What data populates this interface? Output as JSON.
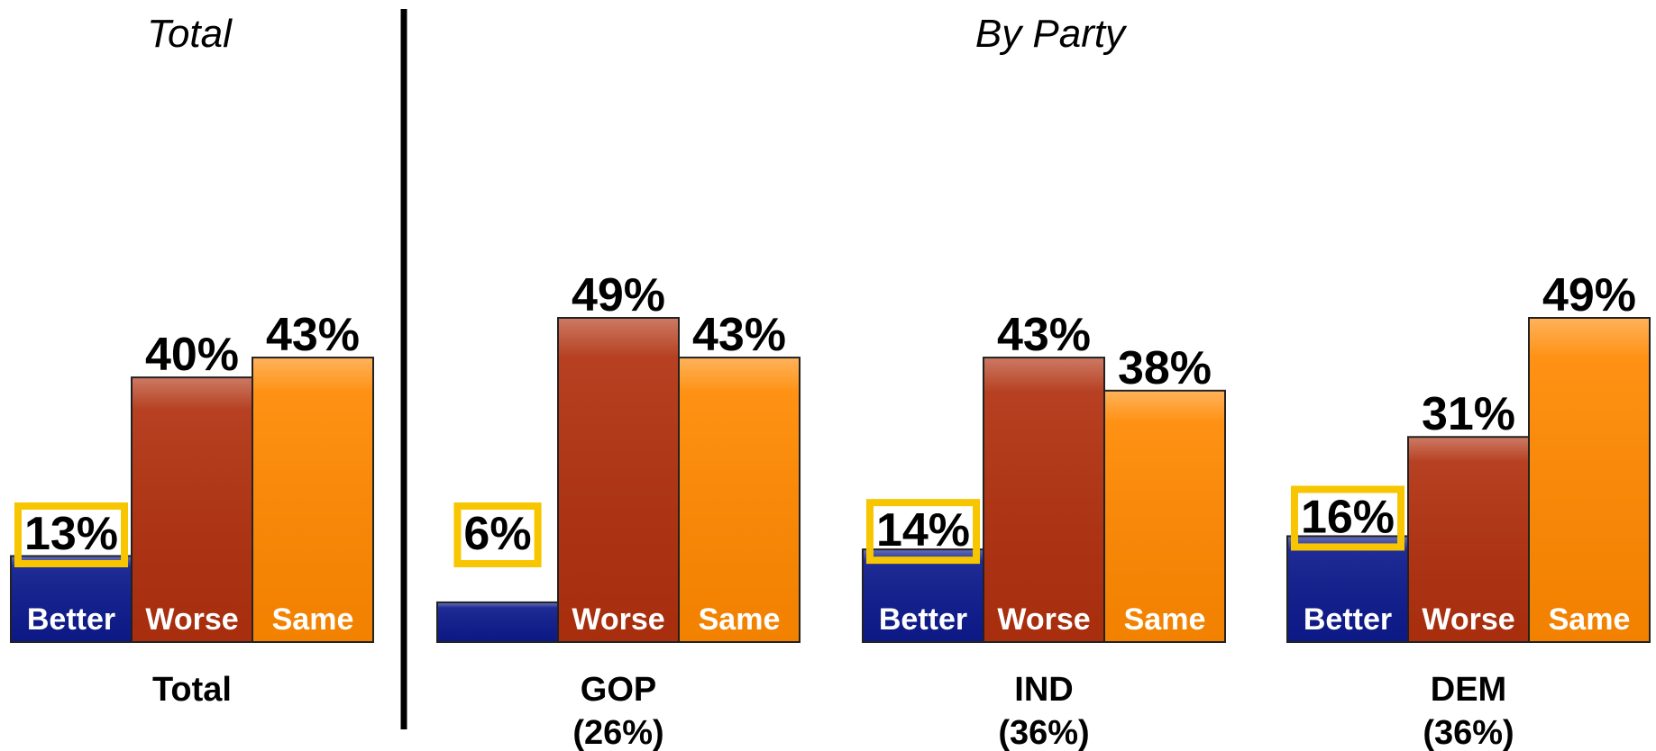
{
  "sections": [
    {
      "title": "Total"
    },
    {
      "title": "By Party"
    }
  ],
  "colors": {
    "Better": "#0d1a8c",
    "Worse": "#b0300e",
    "Same": "#ff8800",
    "highlight": "#f7c600"
  },
  "chart_data": {
    "type": "bar",
    "title": "",
    "xlabel": "",
    "ylabel": "",
    "ylim": [
      0,
      49
    ],
    "series_names": [
      "Better",
      "Worse",
      "Same"
    ],
    "highlighted_series": "Better",
    "groups": [
      {
        "label": "Total",
        "sublabel": "",
        "section": 0,
        "values": [
          13,
          40,
          43
        ],
        "value_labels": [
          "13%",
          "40%",
          "43%"
        ],
        "bar_labels": [
          "Better",
          "Worse",
          "Same"
        ]
      },
      {
        "label": "GOP",
        "sublabel": "(26%)",
        "section": 1,
        "values": [
          6,
          49,
          43
        ],
        "value_labels": [
          "6%",
          "49%",
          "43%"
        ],
        "bar_labels": [
          "",
          "Worse",
          "Same"
        ]
      },
      {
        "label": "IND",
        "sublabel": "(36%)",
        "section": 1,
        "values": [
          14,
          43,
          38
        ],
        "value_labels": [
          "14%",
          "43%",
          "38%"
        ],
        "bar_labels": [
          "Better",
          "Worse",
          "Same"
        ]
      },
      {
        "label": "DEM",
        "sublabel": "(36%)",
        "section": 1,
        "values": [
          16,
          31,
          49
        ],
        "value_labels": [
          "16%",
          "31%",
          "49%"
        ],
        "bar_labels": [
          "Better",
          "Worse",
          "Same"
        ]
      }
    ]
  }
}
